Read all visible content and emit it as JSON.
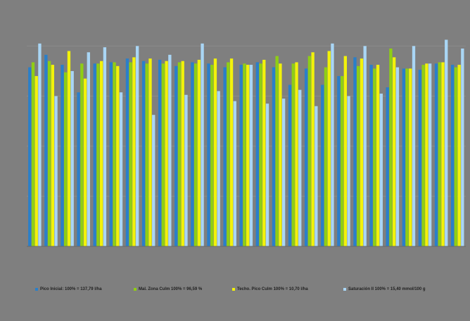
{
  "chart_data": {
    "type": "bar",
    "title": "",
    "xlabel": "",
    "ylabel": "",
    "ylim": [
      0,
      190
    ],
    "grid": true,
    "legend_position": "bottom",
    "categories": [
      "",
      "",
      "",
      "",
      "",
      "",
      "",
      "",
      "",
      "",
      "",
      "",
      "",
      "",
      "",
      "",
      "",
      "",
      "",
      "",
      "",
      "",
      "",
      "",
      "",
      "",
      ""
    ],
    "series": [
      {
        "name": "Pico Inicial: 100% = 137,79 l/ha",
        "color": "#2a7fc9",
        "values": [
          143,
          153,
          145,
          123,
          146,
          147,
          150,
          148,
          149,
          144,
          147,
          146,
          143,
          145,
          147,
          143,
          129,
          142,
          129,
          136,
          151,
          145,
          127,
          142,
          141,
          146,
          145
        ]
      },
      {
        "name": "Mal. Zona Culm 100% = 96,59 %",
        "color": "#8fce14",
        "values": [
          147,
          148,
          139,
          146,
          146,
          147,
          147,
          146,
          146,
          147,
          146,
          145,
          147,
          146,
          146,
          152,
          146,
          152,
          143,
          136,
          144,
          142,
          158,
          142,
          145,
          147,
          143
        ]
      },
      {
        "name": "Techo. Pico Culm 100% = 10,70 l/ha",
        "color": "#f2f20a",
        "values": [
          136,
          145,
          156,
          134,
          148,
          144,
          151,
          150,
          148,
          148,
          149,
          150,
          150,
          145,
          149,
          146,
          147,
          155,
          156,
          152,
          150,
          145,
          151,
          142,
          146,
          147,
          145
        ]
      },
      {
        "name": "Saturación II 100% = 15,40 mmol/100 g",
        "color": "#a9d6f5",
        "values": [
          162,
          120,
          140,
          155,
          159,
          123,
          160,
          105,
          153,
          121,
          162,
          124,
          116,
          145,
          114,
          118,
          125,
          112,
          162,
          120,
          160,
          122,
          143,
          160,
          146,
          165,
          158
        ]
      }
    ]
  },
  "legend": [
    {
      "label": "Pico Inicial: 100% = 137,79 l/ha",
      "color": "#2a7fc9"
    },
    {
      "label": "Mal. Zona Culm 100% = 96,59 %",
      "color": "#8fce14"
    },
    {
      "label": "Techo. Pico Culm 100% = 10,70 l/ha",
      "color": "#f2f20a"
    },
    {
      "label": "Saturación II 100% = 15,40 mmol/100 g",
      "color": "#a9d6f5"
    }
  ]
}
